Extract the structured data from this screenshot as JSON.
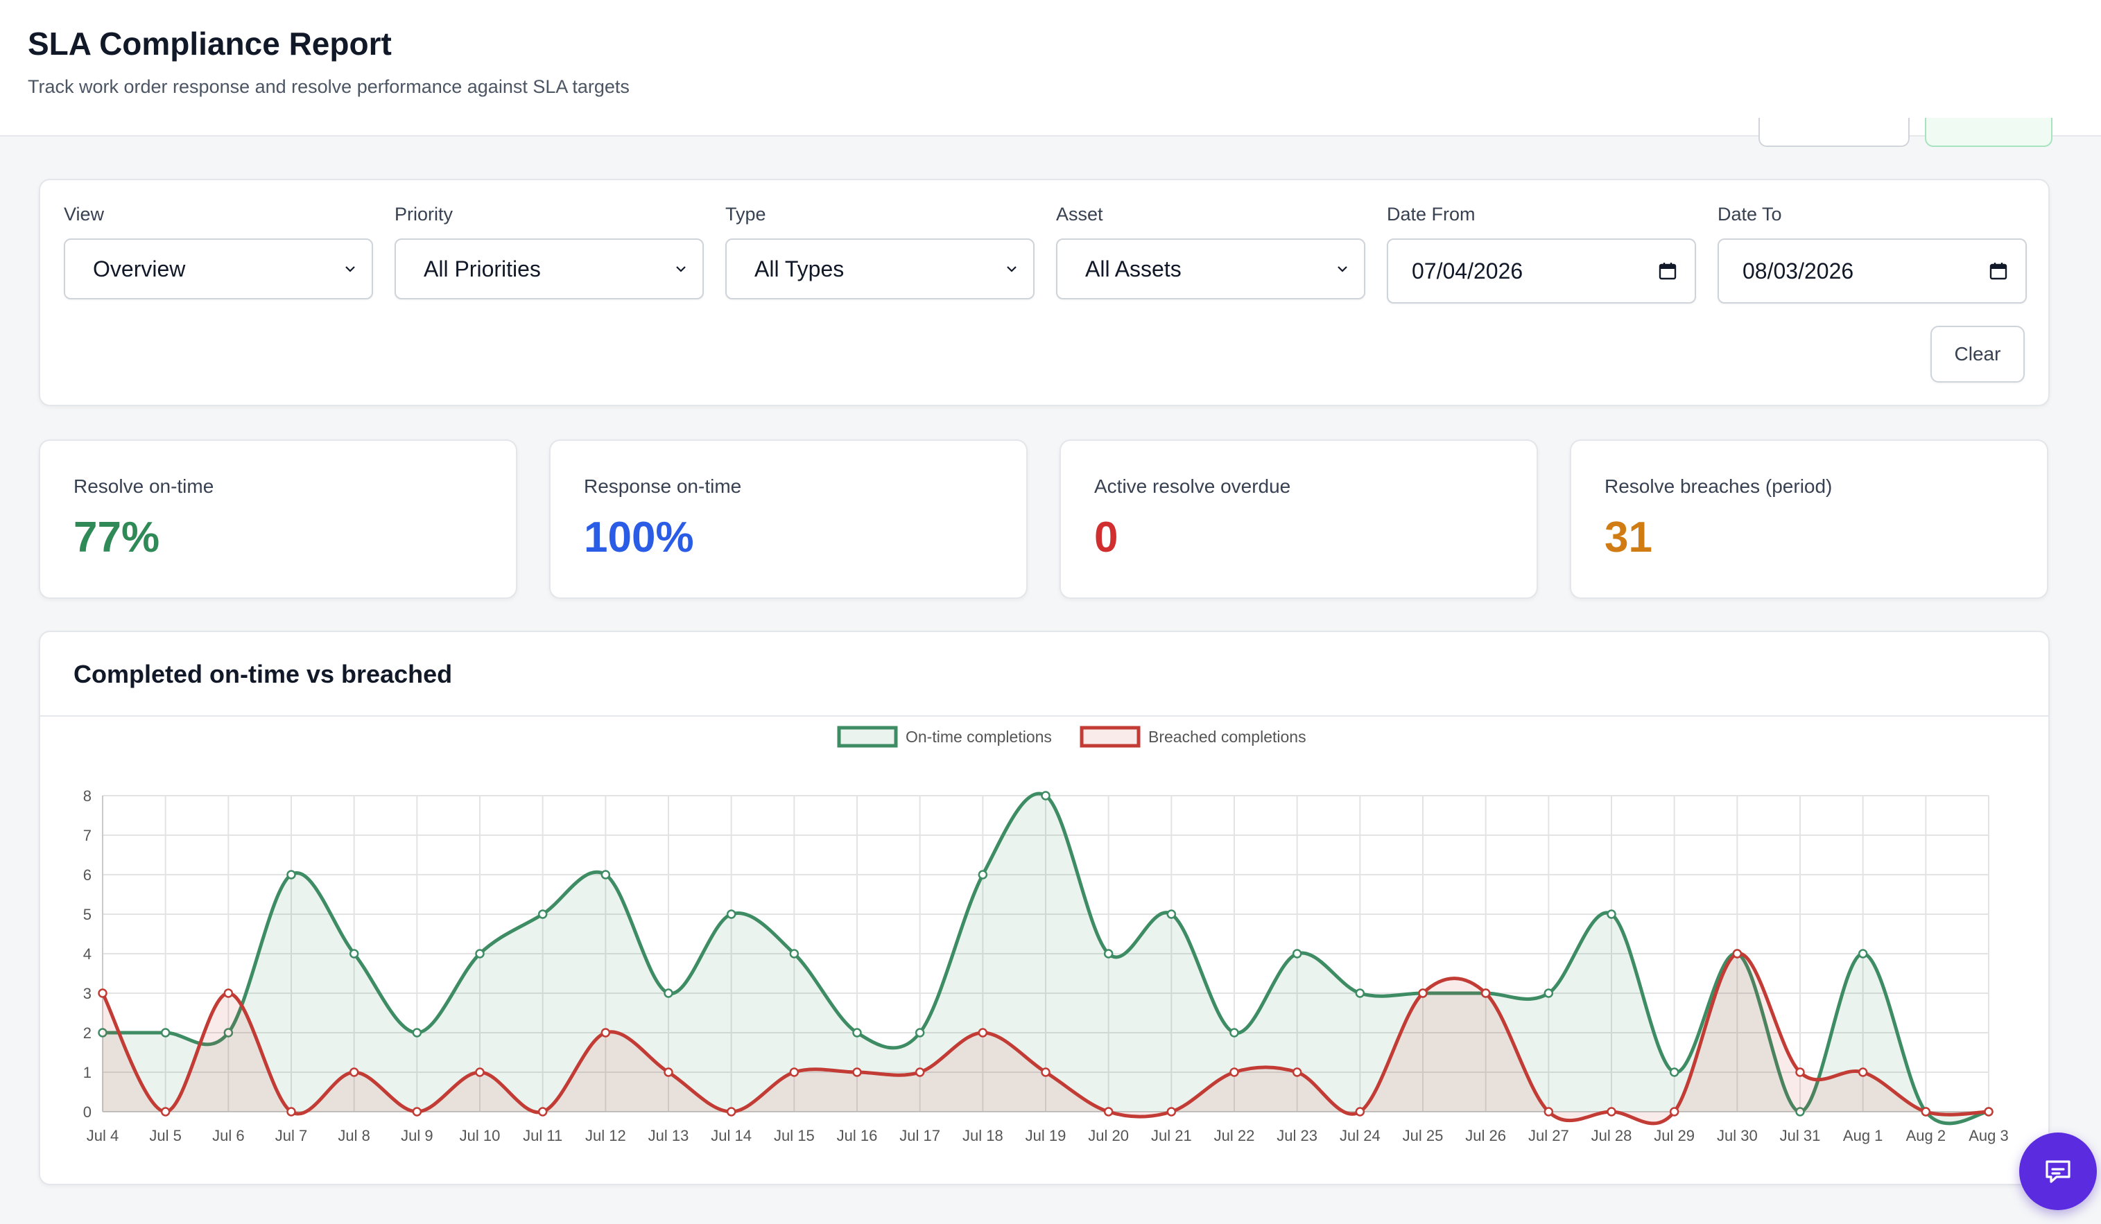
{
  "header": {
    "title": "SLA Compliance Report",
    "subtitle": "Track work order response and resolve performance against SLA targets"
  },
  "filters": {
    "view": {
      "label": "View",
      "value": "Overview"
    },
    "priority": {
      "label": "Priority",
      "value": "All Priorities"
    },
    "type": {
      "label": "Type",
      "value": "All Types"
    },
    "asset": {
      "label": "Asset",
      "value": "All Assets"
    },
    "date_from": {
      "label": "Date From",
      "value": "07/04/2026"
    },
    "date_to": {
      "label": "Date To",
      "value": "08/03/2026"
    },
    "clear_label": "Clear"
  },
  "kpis": [
    {
      "label": "Resolve on-time",
      "value": "77%",
      "color": "#2f8a57"
    },
    {
      "label": "Response on-time",
      "value": "100%",
      "color": "#2a5ce6"
    },
    {
      "label": "Active resolve overdue",
      "value": "0",
      "color": "#d12f2f"
    },
    {
      "label": "Resolve breaches (period)",
      "value": "31",
      "color": "#d17c12"
    }
  ],
  "chart": {
    "title": "Completed on-time vs breached"
  },
  "chart_data": {
    "type": "line",
    "title": "",
    "xlabel": "",
    "ylabel": "",
    "ylim": [
      0,
      8
    ],
    "yticks": [
      0,
      1,
      2,
      3,
      4,
      5,
      6,
      7,
      8
    ],
    "grid": true,
    "legend": "top-center",
    "categories": [
      "Jul 4",
      "Jul 5",
      "Jul 6",
      "Jul 7",
      "Jul 8",
      "Jul 9",
      "Jul 10",
      "Jul 11",
      "Jul 12",
      "Jul 13",
      "Jul 14",
      "Jul 15",
      "Jul 16",
      "Jul 17",
      "Jul 18",
      "Jul 19",
      "Jul 20",
      "Jul 21",
      "Jul 22",
      "Jul 23",
      "Jul 24",
      "Jul 25",
      "Jul 26",
      "Jul 27",
      "Jul 28",
      "Jul 29",
      "Jul 30",
      "Jul 31",
      "Aug 1",
      "Aug 2",
      "Aug 3"
    ],
    "series": [
      {
        "name": "On-time completions",
        "color": "#3d8c63",
        "fill": "rgba(61,140,99,0.10)",
        "values": [
          2,
          2,
          2,
          6,
          4,
          2,
          4,
          5,
          6,
          3,
          5,
          4,
          2,
          2,
          6,
          8,
          4,
          5,
          2,
          4,
          3,
          3,
          3,
          3,
          5,
          1,
          4,
          0,
          4,
          0,
          0
        ]
      },
      {
        "name": "Breached completions",
        "color": "#c23b34",
        "fill": "rgba(194,59,52,0.10)",
        "values": [
          3,
          0,
          3,
          0,
          1,
          0,
          1,
          0,
          2,
          1,
          0,
          1,
          1,
          1,
          2,
          1,
          0,
          0,
          1,
          1,
          0,
          3,
          3,
          0,
          0,
          0,
          4,
          1,
          1,
          0,
          0
        ]
      }
    ]
  },
  "chat": {
    "icon": "chat-bubble-icon",
    "color": "#5b2be0"
  }
}
